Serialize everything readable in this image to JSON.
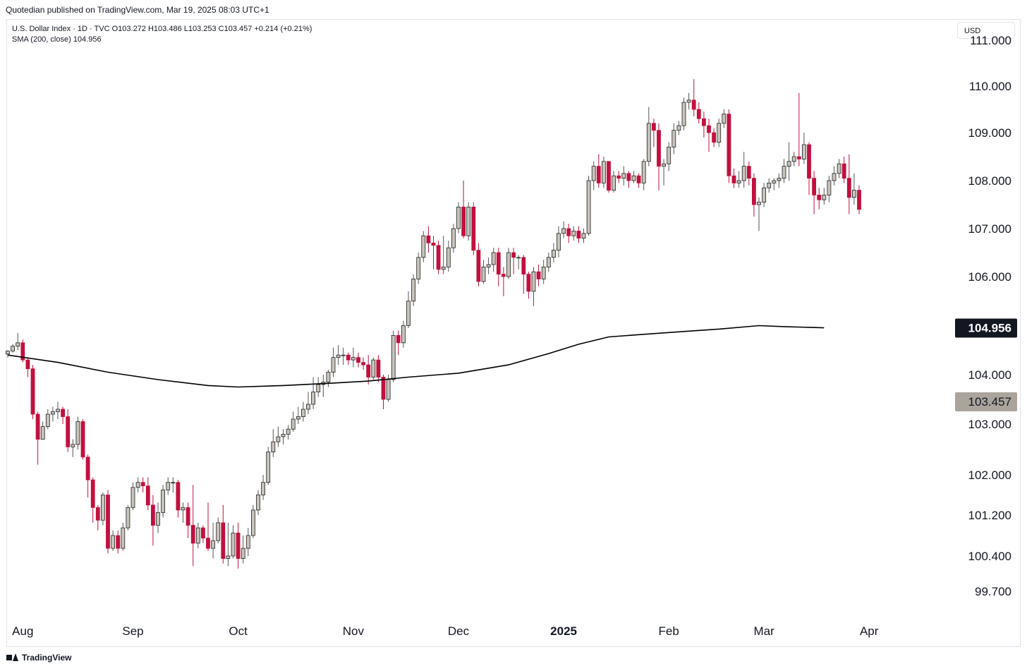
{
  "header": {
    "publisher_line": "Quotedian published on TradingView.com, Mar 19, 2025 08:03 UTC+1"
  },
  "legend": {
    "line1": "U.S. Dollar Index · 1D · TVC  O103.272  H103.486  L103.253  C103.457  +0.214 (+0.21%)",
    "line2": "SMA (200, close)  104.956"
  },
  "currency_button": "USD",
  "footer": {
    "brand": "TradingView"
  },
  "colors": {
    "up_body": "#c8c3bb",
    "down_body": "#c2103e",
    "wick_down": "#c2103e",
    "wick_up": "#555555",
    "sma": "#000000",
    "sma_label_bg": "#131722",
    "last_label_bg": "#aaa49c"
  },
  "chart_data": {
    "type": "candlestick",
    "y_ticks": [
      99.7,
      100.4,
      101.2,
      102.0,
      103.0,
      104.0,
      106.0,
      107.0,
      108.0,
      109.0,
      110.0,
      111.0
    ],
    "y_tick_labels": [
      "99.700",
      "100.400",
      "101.200",
      "102.000",
      "103.000",
      "104.000",
      "106.000",
      "107.000",
      "108.000",
      "109.000",
      "110.000",
      "111.000"
    ],
    "x_labels": [
      {
        "text": "Aug",
        "index": 3
      },
      {
        "text": "Sep",
        "index": 25
      },
      {
        "text": "Oct",
        "index": 46
      },
      {
        "text": "Nov",
        "index": 69
      },
      {
        "text": "Dec",
        "index": 90
      },
      {
        "text": "2025",
        "index": 111,
        "bold": true
      },
      {
        "text": "Feb",
        "index": 132
      },
      {
        "text": "Mar",
        "index": 151
      },
      {
        "text": "Apr",
        "index": 172
      }
    ],
    "sma": {
      "label": "104.956",
      "value": 104.956,
      "points": [
        [
          0,
          104.4
        ],
        [
          10,
          104.25
        ],
        [
          20,
          104.05
        ],
        [
          30,
          103.9
        ],
        [
          40,
          103.78
        ],
        [
          46,
          103.75
        ],
        [
          55,
          103.78
        ],
        [
          65,
          103.83
        ],
        [
          72,
          103.87
        ],
        [
          80,
          103.95
        ],
        [
          90,
          104.03
        ],
        [
          100,
          104.2
        ],
        [
          108,
          104.43
        ],
        [
          114,
          104.62
        ],
        [
          120,
          104.77
        ],
        [
          128,
          104.83
        ],
        [
          135,
          104.88
        ],
        [
          142,
          104.93
        ],
        [
          150,
          105.0
        ],
        [
          155,
          104.98
        ],
        [
          163,
          104.956
        ]
      ]
    },
    "last_price": {
      "label": "103.457",
      "value": 103.457
    },
    "candles": [
      [
        104.42,
        104.48,
        104.35,
        104.5
      ],
      [
        104.48,
        104.58,
        104.45,
        104.62
      ],
      [
        104.58,
        104.65,
        104.5,
        104.85
      ],
      [
        104.65,
        104.3,
        104.25,
        104.72
      ],
      [
        104.3,
        104.12,
        103.95,
        104.35
      ],
      [
        104.12,
        103.2,
        103.1,
        104.2
      ],
      [
        103.2,
        102.7,
        102.2,
        103.25
      ],
      [
        102.7,
        102.95,
        102.8,
        103.05
      ],
      [
        102.95,
        103.2,
        102.9,
        103.3
      ],
      [
        103.2,
        103.25,
        103.05,
        103.35
      ],
      [
        103.25,
        103.3,
        103.1,
        103.45
      ],
      [
        103.3,
        103.15,
        103.0,
        103.35
      ],
      [
        103.15,
        102.55,
        102.45,
        103.3
      ],
      [
        102.55,
        102.6,
        102.35,
        102.7
      ],
      [
        102.6,
        103.05,
        102.5,
        103.15
      ],
      [
        103.05,
        102.35,
        102.3,
        103.1
      ],
      [
        102.35,
        101.9,
        101.55,
        102.4
      ],
      [
        101.9,
        101.35,
        101.05,
        101.95
      ],
      [
        101.35,
        101.1,
        100.9,
        101.4
      ],
      [
        101.1,
        101.6,
        101.0,
        101.65
      ],
      [
        101.6,
        100.55,
        100.45,
        101.7
      ],
      [
        100.55,
        100.8,
        100.5,
        100.9
      ],
      [
        100.8,
        100.55,
        100.45,
        100.9
      ],
      [
        100.55,
        100.95,
        100.5,
        101.05
      ],
      [
        100.95,
        101.35,
        100.9,
        101.4
      ],
      [
        101.35,
        101.75,
        101.3,
        101.85
      ],
      [
        101.75,
        101.85,
        101.65,
        101.95
      ],
      [
        101.85,
        101.78,
        101.65,
        101.95
      ],
      [
        101.78,
        101.4,
        101.3,
        101.95
      ],
      [
        101.4,
        101.0,
        100.6,
        101.6
      ],
      [
        101.0,
        101.25,
        100.85,
        101.45
      ],
      [
        101.25,
        101.7,
        101.15,
        101.8
      ],
      [
        101.7,
        101.85,
        101.6,
        101.95
      ],
      [
        101.85,
        101.85,
        101.65,
        101.95
      ],
      [
        101.85,
        101.3,
        101.15,
        101.9
      ],
      [
        101.3,
        101.35,
        101.05,
        101.45
      ],
      [
        101.35,
        101.0,
        100.75,
        101.45
      ],
      [
        101.0,
        100.65,
        100.2,
        101.8
      ],
      [
        100.65,
        100.95,
        100.55,
        101.05
      ],
      [
        100.95,
        100.75,
        100.65,
        101.0
      ],
      [
        100.75,
        100.55,
        100.5,
        101.45
      ],
      [
        100.55,
        100.7,
        100.35,
        101.05
      ],
      [
        100.7,
        101.05,
        100.65,
        101.15
      ],
      [
        101.05,
        100.35,
        100.25,
        101.4
      ],
      [
        100.35,
        100.4,
        100.2,
        101.05
      ],
      [
        100.4,
        100.85,
        100.35,
        101.0
      ],
      [
        100.85,
        100.35,
        100.15,
        101.05
      ],
      [
        100.35,
        100.55,
        100.25,
        100.8
      ],
      [
        100.55,
        100.8,
        100.4,
        100.95
      ],
      [
        100.8,
        101.3,
        100.75,
        101.4
      ],
      [
        101.3,
        101.6,
        101.2,
        101.7
      ],
      [
        101.6,
        101.85,
        101.5,
        102.0
      ],
      [
        101.85,
        102.45,
        101.8,
        102.55
      ],
      [
        102.45,
        102.65,
        102.35,
        102.9
      ],
      [
        102.65,
        102.75,
        102.55,
        102.95
      ],
      [
        102.75,
        102.8,
        102.6,
        102.9
      ],
      [
        102.8,
        102.9,
        102.7,
        102.98
      ],
      [
        102.9,
        103.1,
        102.85,
        103.25
      ],
      [
        103.1,
        103.15,
        103.0,
        103.35
      ],
      [
        103.15,
        103.3,
        103.05,
        103.45
      ],
      [
        103.3,
        103.4,
        103.2,
        103.65
      ],
      [
        103.4,
        103.65,
        103.3,
        103.95
      ],
      [
        103.65,
        103.8,
        103.55,
        103.95
      ],
      [
        103.8,
        103.85,
        103.55,
        104.0
      ],
      [
        103.85,
        104.05,
        103.75,
        104.1
      ],
      [
        104.05,
        104.35,
        103.95,
        104.55
      ],
      [
        104.35,
        104.4,
        104.2,
        104.6
      ],
      [
        104.4,
        104.4,
        104.2,
        104.55
      ],
      [
        104.4,
        104.3,
        104.2,
        104.45
      ],
      [
        104.3,
        104.35,
        104.15,
        104.55
      ],
      [
        104.35,
        104.25,
        104.15,
        104.45
      ],
      [
        104.25,
        104.2,
        104.1,
        104.35
      ],
      [
        104.2,
        103.95,
        103.8,
        104.4
      ],
      [
        103.95,
        104.3,
        103.9,
        104.35
      ],
      [
        104.3,
        103.95,
        103.85,
        104.4
      ],
      [
        103.95,
        103.5,
        103.3,
        104.0
      ],
      [
        103.5,
        103.9,
        103.45,
        104.0
      ],
      [
        103.9,
        104.8,
        103.85,
        104.9
      ],
      [
        104.8,
        104.65,
        104.4,
        104.9
      ],
      [
        104.65,
        105.0,
        104.55,
        105.1
      ],
      [
        105.0,
        105.5,
        104.95,
        105.7
      ],
      [
        105.5,
        105.95,
        105.4,
        106.05
      ],
      [
        105.95,
        106.4,
        105.85,
        106.5
      ],
      [
        106.4,
        106.85,
        106.3,
        106.95
      ],
      [
        106.85,
        106.7,
        106.5,
        107.05
      ],
      [
        106.7,
        106.65,
        106.15,
        106.85
      ],
      [
        106.65,
        106.15,
        106.05,
        106.75
      ],
      [
        106.15,
        106.2,
        106.05,
        106.85
      ],
      [
        106.2,
        106.6,
        106.1,
        106.75
      ],
      [
        106.6,
        107.0,
        106.5,
        107.1
      ],
      [
        107.0,
        107.45,
        106.9,
        107.55
      ],
      [
        107.45,
        106.85,
        106.8,
        108.0
      ],
      [
        106.85,
        107.45,
        106.75,
        107.55
      ],
      [
        107.45,
        106.55,
        106.45,
        107.55
      ],
      [
        106.55,
        105.9,
        105.8,
        106.7
      ],
      [
        105.9,
        106.2,
        105.85,
        106.35
      ],
      [
        106.2,
        106.25,
        106.05,
        106.4
      ],
      [
        106.25,
        106.5,
        106.1,
        106.6
      ],
      [
        106.5,
        106.05,
        105.8,
        106.6
      ],
      [
        106.05,
        106.0,
        105.6,
        106.2
      ],
      [
        106.0,
        106.5,
        105.95,
        106.6
      ],
      [
        106.5,
        106.4,
        106.05,
        106.6
      ],
      [
        106.4,
        106.4,
        106.15,
        106.45
      ],
      [
        106.4,
        106.05,
        105.65,
        106.45
      ],
      [
        106.05,
        105.7,
        105.55,
        106.1
      ],
      [
        105.7,
        106.1,
        105.4,
        106.2
      ],
      [
        106.1,
        105.95,
        105.8,
        106.25
      ],
      [
        105.95,
        106.2,
        105.85,
        106.35
      ],
      [
        106.2,
        106.4,
        106.1,
        106.5
      ],
      [
        106.4,
        106.55,
        106.3,
        106.7
      ],
      [
        106.55,
        106.9,
        106.4,
        107.05
      ],
      [
        106.9,
        107.0,
        106.8,
        107.15
      ],
      [
        107.0,
        106.85,
        106.7,
        107.1
      ],
      [
        106.85,
        106.95,
        106.75,
        107.05
      ],
      [
        106.95,
        106.8,
        106.7,
        107.05
      ],
      [
        106.8,
        106.9,
        106.7,
        107.0
      ],
      [
        106.9,
        108.0,
        106.85,
        108.1
      ],
      [
        108.0,
        108.3,
        107.8,
        108.4
      ],
      [
        108.3,
        107.95,
        107.85,
        108.55
      ],
      [
        107.95,
        108.4,
        107.85,
        108.5
      ],
      [
        108.4,
        107.8,
        107.75,
        108.4
      ],
      [
        107.8,
        108.1,
        107.75,
        108.2
      ],
      [
        108.1,
        108.05,
        107.95,
        108.2
      ],
      [
        108.05,
        108.15,
        107.9,
        108.3
      ],
      [
        108.15,
        108.0,
        107.85,
        108.2
      ],
      [
        108.0,
        108.1,
        107.95,
        108.2
      ],
      [
        108.1,
        107.95,
        107.85,
        108.15
      ],
      [
        107.95,
        108.4,
        107.8,
        108.45
      ],
      [
        108.4,
        109.2,
        108.3,
        109.55
      ],
      [
        109.2,
        109.05,
        108.7,
        109.3
      ],
      [
        109.05,
        108.3,
        107.8,
        109.2
      ],
      [
        108.3,
        108.35,
        107.9,
        108.45
      ],
      [
        108.35,
        108.7,
        108.2,
        108.8
      ],
      [
        108.7,
        109.05,
        108.55,
        109.2
      ],
      [
        109.05,
        109.15,
        108.95,
        109.25
      ],
      [
        109.15,
        109.65,
        109.05,
        109.75
      ],
      [
        109.65,
        109.7,
        109.5,
        109.85
      ],
      [
        109.7,
        109.5,
        109.35,
        110.15
      ],
      [
        109.5,
        109.3,
        109.2,
        109.65
      ],
      [
        109.3,
        109.15,
        108.9,
        109.45
      ],
      [
        109.15,
        109.0,
        108.6,
        109.3
      ],
      [
        109.0,
        108.8,
        108.7,
        109.1
      ],
      [
        108.8,
        109.2,
        108.7,
        109.3
      ],
      [
        109.2,
        109.4,
        109.1,
        109.5
      ],
      [
        109.4,
        108.1,
        107.95,
        109.5
      ],
      [
        108.1,
        107.95,
        107.85,
        108.25
      ],
      [
        107.95,
        108.0,
        107.85,
        108.2
      ],
      [
        108.0,
        108.3,
        107.85,
        108.6
      ],
      [
        108.3,
        108.05,
        107.9,
        108.4
      ],
      [
        108.05,
        107.5,
        107.25,
        108.15
      ],
      [
        107.5,
        107.55,
        106.95,
        107.65
      ],
      [
        107.55,
        107.85,
        107.45,
        107.95
      ],
      [
        107.85,
        107.95,
        107.75,
        108.05
      ],
      [
        107.95,
        108.0,
        107.8,
        108.05
      ],
      [
        108.0,
        108.05,
        107.85,
        108.15
      ],
      [
        108.05,
        108.3,
        107.95,
        108.45
      ],
      [
        108.3,
        108.4,
        108.0,
        108.8
      ],
      [
        108.4,
        108.5,
        108.3,
        108.6
      ],
      [
        108.5,
        108.45,
        108.3,
        109.85
      ],
      [
        108.45,
        108.75,
        108.35,
        109.0
      ],
      [
        108.75,
        108.05,
        107.7,
        108.8
      ],
      [
        108.05,
        107.7,
        107.3,
        108.2
      ],
      [
        107.7,
        107.6,
        107.4,
        107.85
      ],
      [
        107.6,
        107.7,
        107.5,
        107.85
      ],
      [
        107.7,
        108.0,
        107.55,
        108.1
      ],
      [
        108.0,
        108.15,
        107.9,
        108.3
      ],
      [
        108.15,
        108.35,
        108.05,
        108.45
      ],
      [
        108.35,
        108.05,
        107.95,
        108.5
      ],
      [
        108.05,
        107.65,
        107.3,
        108.55
      ],
      [
        107.65,
        107.8,
        107.5,
        108.15
      ],
      [
        107.8,
        107.4,
        107.3,
        107.9
      ]
    ]
  }
}
